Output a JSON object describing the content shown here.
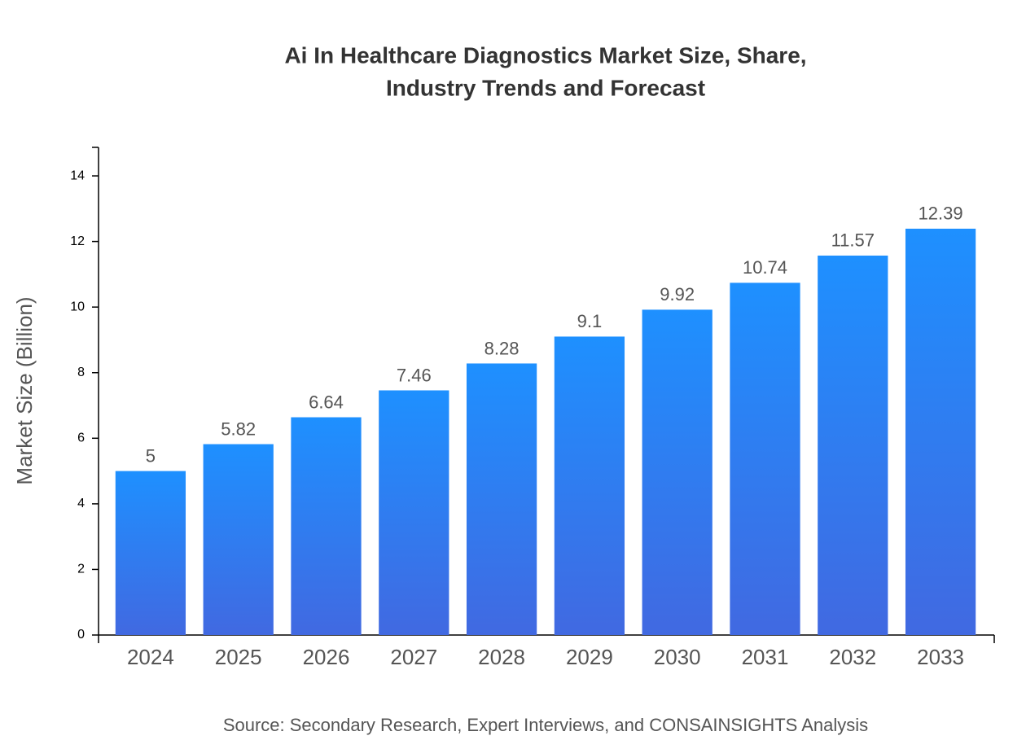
{
  "chart_data": {
    "type": "bar",
    "title": [
      "Ai In Healthcare Diagnostics Market Size, Share,",
      "Industry Trends and Forecast"
    ],
    "y_label": "Market Size (Billion)",
    "source": "Source: Secondary Research, Expert Interviews, and CONSAINSIGHTS Analysis",
    "categories": [
      "2024",
      "2025",
      "2026",
      "2027",
      "2028",
      "2029",
      "2030",
      "2031",
      "2032",
      "2033"
    ],
    "values": [
      5,
      5.82,
      6.64,
      7.46,
      8.28,
      9.1,
      9.92,
      10.74,
      11.57,
      12.39
    ],
    "gradient": [
      "#1E90FF",
      "#4169E1"
    ],
    "ylim": [
      0,
      14.87
    ],
    "yticks": [
      0,
      2,
      4,
      6,
      8,
      10,
      12,
      14
    ],
    "grid": false
  }
}
